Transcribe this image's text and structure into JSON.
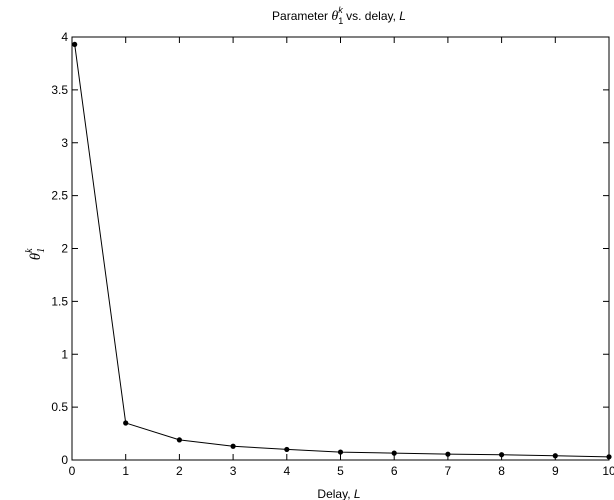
{
  "chart_data": {
    "type": "line",
    "title": {
      "prefix": "Parameter ",
      "symbol": "θ",
      "sub": "1",
      "sup": "k",
      "middle": " vs. delay, ",
      "var": "L"
    },
    "xlabel": {
      "prefix": "Delay, ",
      "var": "L"
    },
    "ylabel": {
      "symbol": "θ",
      "sub": "1",
      "sup": "k"
    },
    "xlim": [
      0,
      10
    ],
    "ylim": [
      0,
      4
    ],
    "xticks": [
      0,
      1,
      2,
      3,
      4,
      5,
      6,
      7,
      8,
      9,
      10
    ],
    "yticks": [
      0,
      0.5,
      1,
      1.5,
      2,
      2.5,
      3,
      3.5,
      4
    ],
    "xtick_labels": [
      "0",
      "1",
      "2",
      "3",
      "4",
      "5",
      "6",
      "7",
      "8",
      "9",
      "10"
    ],
    "ytick_labels": [
      "0",
      "0.5",
      "1",
      "1.5",
      "2",
      "2.5",
      "3",
      "3.5",
      "4"
    ],
    "grid": false,
    "series": [
      {
        "color": "#000000",
        "marker": "circle",
        "x": [
          0.05,
          1,
          2,
          3,
          4,
          5,
          6,
          7,
          8,
          9,
          10
        ],
        "y": [
          3.93,
          0.35,
          0.19,
          0.13,
          0.1,
          0.075,
          0.065,
          0.055,
          0.05,
          0.04,
          0.03
        ]
      }
    ]
  }
}
